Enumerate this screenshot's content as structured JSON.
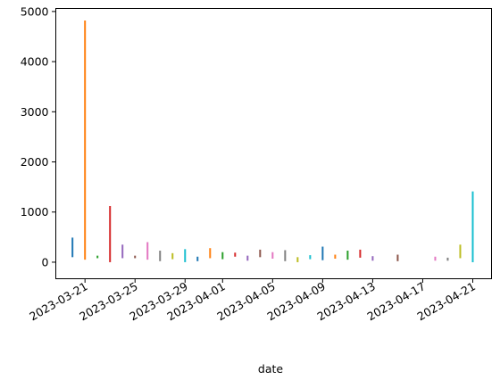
{
  "chart_data": {
    "type": "bar",
    "style": "vertical range segments (vlines), one per date",
    "xlabel": "date",
    "ylabel": "",
    "title": "",
    "x_ticks": [
      "2023-03-21",
      "2023-03-25",
      "2023-03-29",
      "2023-04-01",
      "2023-04-05",
      "2023-04-09",
      "2023-04-13",
      "2023-04-17",
      "2023-04-21"
    ],
    "y_ticks": [
      0,
      1000,
      2000,
      3000,
      4000,
      5000
    ],
    "ylim": [
      -330,
      5060
    ],
    "xlim": [
      "2023-03-18T16:00",
      "2023-04-22T12:00"
    ],
    "grid": false,
    "colors": [
      "#1f77b4",
      "#ff7f0e",
      "#2ca02c",
      "#d62728",
      "#9467bd",
      "#8c564b",
      "#e377c2",
      "#7f7f7f",
      "#bcbd22",
      "#17becf"
    ],
    "segments": [
      {
        "date": "2023-03-20",
        "low": 100,
        "high": 490
      },
      {
        "date": "2023-03-21",
        "low": 50,
        "high": 4820
      },
      {
        "date": "2023-03-22",
        "low": 80,
        "high": 130
      },
      {
        "date": "2023-03-23",
        "low": 0,
        "high": 1120
      },
      {
        "date": "2023-03-24",
        "low": 80,
        "high": 350
      },
      {
        "date": "2023-03-25",
        "low": 80,
        "high": 130
      },
      {
        "date": "2023-03-26",
        "low": 50,
        "high": 400
      },
      {
        "date": "2023-03-27",
        "low": 20,
        "high": 230
      },
      {
        "date": "2023-03-28",
        "low": 60,
        "high": 180
      },
      {
        "date": "2023-03-29",
        "low": 0,
        "high": 260
      },
      {
        "date": "2023-03-30",
        "low": 20,
        "high": 110
      },
      {
        "date": "2023-03-31",
        "low": 80,
        "high": 280
      },
      {
        "date": "2023-04-01",
        "low": 60,
        "high": 200
      },
      {
        "date": "2023-04-02",
        "low": 110,
        "high": 190
      },
      {
        "date": "2023-04-03",
        "low": 30,
        "high": 130
      },
      {
        "date": "2023-04-04",
        "low": 100,
        "high": 250
      },
      {
        "date": "2023-04-05",
        "low": 70,
        "high": 200
      },
      {
        "date": "2023-04-06",
        "low": 20,
        "high": 240
      },
      {
        "date": "2023-04-07",
        "low": 0,
        "high": 100
      },
      {
        "date": "2023-04-08",
        "low": 60,
        "high": 140
      },
      {
        "date": "2023-04-09",
        "low": 40,
        "high": 310
      },
      {
        "date": "2023-04-10",
        "low": 70,
        "high": 150
      },
      {
        "date": "2023-04-11",
        "low": 50,
        "high": 230
      },
      {
        "date": "2023-04-12",
        "low": 90,
        "high": 250
      },
      {
        "date": "2023-04-13",
        "low": 30,
        "high": 120
      },
      {
        "date": "2023-04-15",
        "low": 20,
        "high": 150
      },
      {
        "date": "2023-04-18",
        "low": 30,
        "high": 110
      },
      {
        "date": "2023-04-19",
        "low": 30,
        "high": 90
      },
      {
        "date": "2023-04-20",
        "low": 80,
        "high": 350
      },
      {
        "date": "2023-04-21",
        "low": 0,
        "high": 1410
      }
    ]
  }
}
